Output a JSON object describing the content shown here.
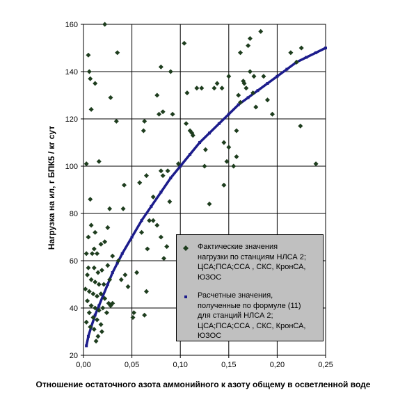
{
  "chart_data": {
    "type": "scatter",
    "xlabel": "Отношение остаточного азота аммонийного к азоту общему в осветленной воде",
    "ylabel": "Нагрузка на ил, г БПК5 / кг сут",
    "xlim": [
      0,
      0.25
    ],
    "ylim": [
      20,
      160
    ],
    "x_ticks": [
      "0,00",
      "0,05",
      "0,10",
      "0,15",
      "0,20",
      "0,25"
    ],
    "y_ticks": [
      "20",
      "40",
      "60",
      "80",
      "100",
      "120",
      "140",
      "160"
    ],
    "grid": true,
    "legend_position": "bottom-right inside plot",
    "series": [
      {
        "name": "Фактические значения нагрузки по станциям НЛСА 2; ЦСА;ПСА;ССА , СКС, КронСА, ЮЗОС",
        "marker": "diamond",
        "color": "#1e3d1e",
        "points": [
          [
            0.022,
            160
          ],
          [
            0.005,
            147
          ],
          [
            0.035,
            148
          ],
          [
            0.006,
            140
          ],
          [
            0.007,
            137
          ],
          [
            0.012,
            135
          ],
          [
            0.008,
            124
          ],
          [
            0.028,
            129
          ],
          [
            0.034,
            119
          ],
          [
            0.003,
            101
          ],
          [
            0.016,
            102
          ],
          [
            0.007,
            86
          ],
          [
            0.027,
            82
          ],
          [
            0.041,
            82
          ],
          [
            0.042,
            92
          ],
          [
            0.008,
            75
          ],
          [
            0.012,
            72
          ],
          [
            0.025,
            74
          ],
          [
            0.005,
            70
          ],
          [
            0.018,
            67
          ],
          [
            0.022,
            68
          ],
          [
            0.011,
            65
          ],
          [
            0.003,
            63
          ],
          [
            0.009,
            63
          ],
          [
            0.014,
            63
          ],
          [
            0.03,
            62
          ],
          [
            0.036,
            60
          ],
          [
            0.025,
            58
          ],
          [
            0.005,
            57
          ],
          [
            0.011,
            57
          ],
          [
            0.015,
            55
          ],
          [
            0.019,
            56
          ],
          [
            0.004,
            54
          ],
          [
            0.008,
            52
          ],
          [
            0.012,
            51
          ],
          [
            0.016,
            50
          ],
          [
            0.021,
            50
          ],
          [
            0.027,
            52
          ],
          [
            0.039,
            52
          ],
          [
            0.043,
            54
          ],
          [
            0.046,
            49
          ],
          [
            0.002,
            48
          ],
          [
            0.006,
            47
          ],
          [
            0.01,
            46
          ],
          [
            0.014,
            45
          ],
          [
            0.018,
            46
          ],
          [
            0.022,
            44
          ],
          [
            0.026,
            42
          ],
          [
            0.03,
            42
          ],
          [
            0.004,
            43
          ],
          [
            0.008,
            41
          ],
          [
            0.012,
            40
          ],
          [
            0.016,
            39
          ],
          [
            0.02,
            40
          ],
          [
            0.024,
            38
          ],
          [
            0.028,
            41
          ],
          [
            0.006,
            38
          ],
          [
            0.01,
            36
          ],
          [
            0.014,
            35
          ],
          [
            0.018,
            33
          ],
          [
            0.003,
            34
          ],
          [
            0.007,
            32
          ],
          [
            0.011,
            31
          ],
          [
            0.015,
            28
          ],
          [
            0.019,
            30
          ],
          [
            0.013,
            26
          ],
          [
            0.051,
            36
          ],
          [
            0.052,
            38
          ],
          [
            0.063,
            37
          ],
          [
            0.055,
            55
          ],
          [
            0.065,
            47
          ],
          [
            0.066,
            65
          ],
          [
            0.06,
            72
          ],
          [
            0.068,
            77
          ],
          [
            0.072,
            77
          ],
          [
            0.08,
            70
          ],
          [
            0.083,
            61
          ],
          [
            0.086,
            66
          ],
          [
            0.076,
            75
          ],
          [
            0.058,
            93
          ],
          [
            0.065,
            96
          ],
          [
            0.072,
            87
          ],
          [
            0.08,
            98
          ],
          [
            0.082,
            96
          ],
          [
            0.087,
            98
          ],
          [
            0.089,
            85
          ],
          [
            0.062,
            115
          ],
          [
            0.063,
            119
          ],
          [
            0.078,
            122
          ],
          [
            0.08,
            142
          ],
          [
            0.076,
            130
          ],
          [
            0.09,
            140
          ],
          [
            0.082,
            123
          ],
          [
            0.092,
            122
          ],
          [
            0.098,
            101
          ],
          [
            0.104,
            152
          ],
          [
            0.107,
            131
          ],
          [
            0.11,
            115
          ],
          [
            0.106,
            118
          ],
          [
            0.112,
            114
          ],
          [
            0.113,
            113
          ],
          [
            0.117,
            133
          ],
          [
            0.122,
            133
          ],
          [
            0.125,
            100
          ],
          [
            0.126,
            107
          ],
          [
            0.13,
            84
          ],
          [
            0.135,
            133
          ],
          [
            0.138,
            135
          ],
          [
            0.143,
            133
          ],
          [
            0.145,
            110
          ],
          [
            0.148,
            102
          ],
          [
            0.145,
            92
          ],
          [
            0.15,
            138
          ],
          [
            0.158,
            115
          ],
          [
            0.155,
            100
          ],
          [
            0.16,
            130
          ],
          [
            0.162,
            127
          ],
          [
            0.162,
            148
          ],
          [
            0.165,
            136
          ],
          [
            0.166,
            135
          ],
          [
            0.168,
            133
          ],
          [
            0.17,
            151
          ],
          [
            0.172,
            154
          ],
          [
            0.172,
            140
          ],
          [
            0.175,
            131
          ],
          [
            0.176,
            138
          ],
          [
            0.178,
            125
          ],
          [
            0.183,
            157
          ],
          [
            0.186,
            138
          ],
          [
            0.19,
            128
          ],
          [
            0.195,
            122
          ],
          [
            0.214,
            148
          ],
          [
            0.22,
            144
          ],
          [
            0.225,
            150
          ],
          [
            0.224,
            117
          ],
          [
            0.24,
            101
          ],
          [
            0.15,
            108
          ],
          [
            0.158,
            104
          ]
        ]
      },
      {
        "name": "Расчетные значения, полученные по формуле (11) для станций НЛСА 2; ЦСА;ПСА;ССА , СКС, КронСА, ЮЗОС",
        "marker": "square",
        "color": "#1c1c8c",
        "points": [
          [
            0.003,
            24
          ],
          [
            0.005,
            28
          ],
          [
            0.008,
            32
          ],
          [
            0.012,
            37
          ],
          [
            0.016,
            41
          ],
          [
            0.02,
            45
          ],
          [
            0.025,
            50
          ],
          [
            0.03,
            55
          ],
          [
            0.035,
            59
          ],
          [
            0.04,
            63
          ],
          [
            0.05,
            70
          ],
          [
            0.06,
            77
          ],
          [
            0.07,
            83
          ],
          [
            0.08,
            89
          ],
          [
            0.09,
            95
          ],
          [
            0.1,
            100
          ],
          [
            0.11,
            105
          ],
          [
            0.12,
            110
          ],
          [
            0.13,
            114
          ],
          [
            0.14,
            118
          ],
          [
            0.15,
            122
          ],
          [
            0.16,
            126
          ],
          [
            0.17,
            129
          ],
          [
            0.18,
            132
          ],
          [
            0.19,
            135
          ],
          [
            0.2,
            138
          ],
          [
            0.21,
            141
          ],
          [
            0.22,
            144
          ],
          [
            0.23,
            146
          ],
          [
            0.24,
            148
          ],
          [
            0.25,
            150
          ]
        ]
      }
    ]
  },
  "legend": {
    "series1_text": "Фактические значения\nнагрузки по станциям НЛСА 2;\nЦСА;ПСА;ССА , СКС, КронСА,\nЮЗОС",
    "series2_text": "Расчетные значения,\nполученные по формуле (11)\nдля станций НЛСА 2;\nЦСА;ПСА;ССА , СКС, КронСА,\nЮЗОС"
  }
}
